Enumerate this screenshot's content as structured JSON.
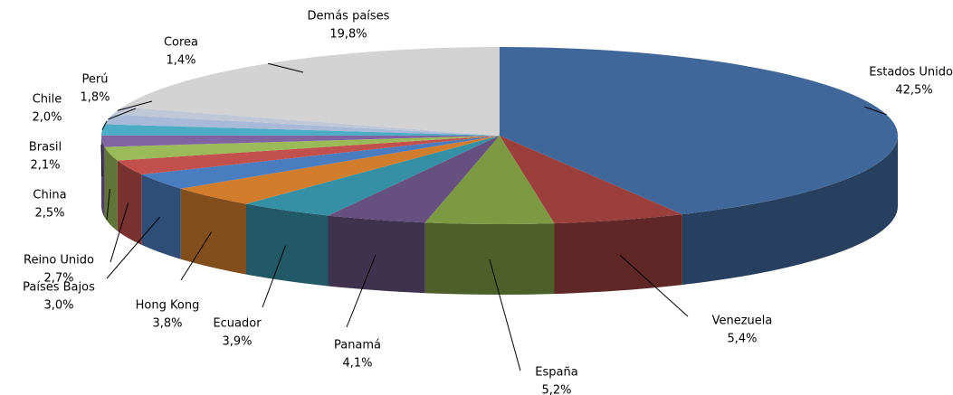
{
  "chart_data": {
    "type": "pie3d",
    "categories": [
      "Estados Unidos",
      "Venezuela",
      "España",
      "Panamá",
      "Ecuador",
      "Hong Kong",
      "Países Bajos",
      "Reino Unido",
      "China",
      "Brasil",
      "Chile",
      "Perú",
      "Corea",
      "Demás países"
    ],
    "values": [
      42.5,
      5.4,
      5.2,
      4.1,
      3.9,
      3.8,
      3.0,
      2.7,
      2.5,
      2.1,
      2.0,
      1.8,
      1.4,
      19.8
    ],
    "value_labels": [
      "42,5%",
      "5,4%",
      "5,2%",
      "4,1%",
      "3,9%",
      "3,8%",
      "3,0%",
      "2,7%",
      "2,5%",
      "2,1%",
      "2,0%",
      "1,8%",
      "1,4%",
      "19,8%"
    ],
    "colors": [
      "#3f679a",
      "#9a3f3c",
      "#7d9a43",
      "#65507f",
      "#3590a5",
      "#d17d2c",
      "#4a7cc0",
      "#c2504d",
      "#9bbb59",
      "#8064a2",
      "#4bacc6",
      "#a9b9d8",
      "#c0c8d8",
      "#d3d3d3"
    ]
  }
}
